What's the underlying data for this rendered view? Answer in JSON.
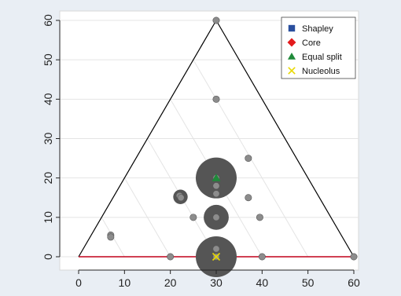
{
  "chart_data": {
    "type": "scatter",
    "title": "",
    "xlabel": "",
    "ylabel": "",
    "xlim": [
      0,
      60
    ],
    "ylim": [
      0,
      60
    ],
    "x_ticks": [
      0,
      10,
      20,
      30,
      40,
      50,
      60
    ],
    "y_ticks": [
      0,
      10,
      20,
      30,
      40,
      50,
      60
    ],
    "grid": "horizontal gridlines plus diagonal lines parallel to the right triangle edge",
    "triangle": {
      "vertices": [
        [
          0,
          0
        ],
        [
          60,
          0
        ],
        [
          30,
          60
        ]
      ],
      "color": "#000000",
      "base_color": "#c0001a"
    },
    "grey_points": {
      "color": "#8c8c8c",
      "points": [
        [
          7,
          5.5
        ],
        [
          7,
          5
        ],
        [
          22,
          15.5
        ],
        [
          22.3,
          15
        ],
        [
          25,
          10
        ],
        [
          30,
          40
        ],
        [
          30,
          60
        ],
        [
          37,
          25
        ],
        [
          37,
          15
        ],
        [
          39.5,
          10
        ],
        [
          20,
          0
        ],
        [
          40,
          0
        ],
        [
          60,
          0
        ],
        [
          30,
          20
        ],
        [
          30,
          18
        ],
        [
          30,
          16
        ],
        [
          30,
          10
        ],
        [
          30,
          2
        ],
        [
          30,
          0
        ]
      ]
    },
    "bubbles": {
      "color": "#555555",
      "points": [
        {
          "x": 30,
          "y": 20,
          "size": 4
        },
        {
          "x": 30,
          "y": 10,
          "size": 1.5
        },
        {
          "x": 30,
          "y": 0,
          "size": 4
        },
        {
          "x": 22.2,
          "y": 15.2,
          "size": 0.5
        }
      ]
    },
    "series": [
      {
        "name": "Shapley",
        "color": "#2a4f9e",
        "marker": "square",
        "points": []
      },
      {
        "name": "Core",
        "color": "#e31a1c",
        "marker": "diamond",
        "points": []
      },
      {
        "name": "Equal split",
        "color": "#1f8a3a",
        "marker": "triangle",
        "points": [
          [
            30,
            20
          ]
        ]
      },
      {
        "name": "Nucleolus",
        "color": "#e8d800",
        "marker": "x",
        "points": [
          [
            30,
            0
          ]
        ]
      }
    ],
    "legend_position": "top-right"
  }
}
